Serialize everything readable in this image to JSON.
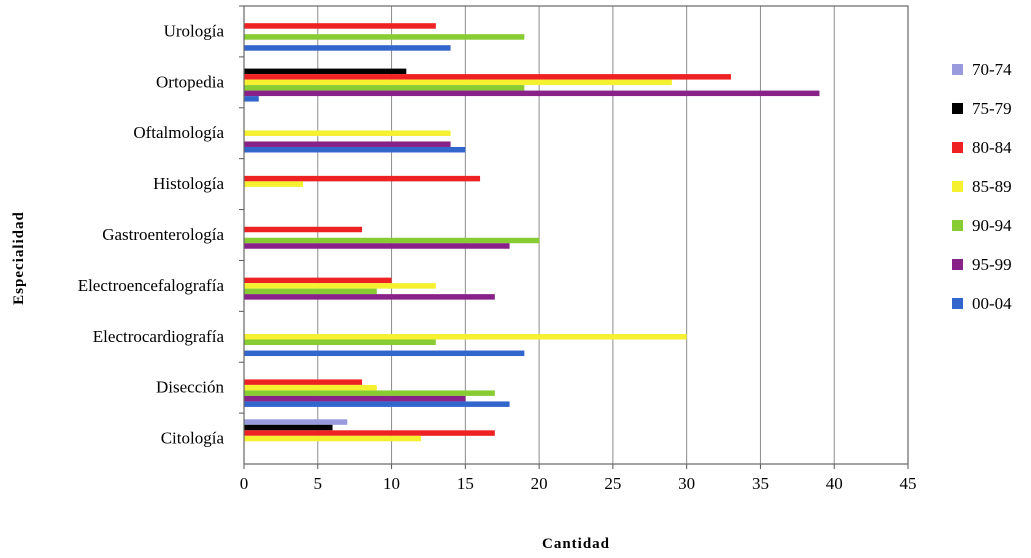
{
  "chart_data": {
    "type": "bar",
    "orientation": "horizontal",
    "title": "",
    "xlabel": "Cantidad",
    "ylabel": "Especialidad",
    "xlim": [
      0,
      45
    ],
    "xticks": [
      "0",
      "5",
      "10",
      "15",
      "20",
      "25",
      "30",
      "35",
      "40",
      "45"
    ],
    "grid": "vertical",
    "legend_position": "right",
    "categories": [
      "Urología",
      "Ortopedia",
      "Oftalmología",
      "Histología",
      "Gastroenterología",
      "Electroencefalografía",
      "Electrocardiografía",
      "Disección",
      "Citología"
    ],
    "series": [
      {
        "name": "70-74",
        "color": "#9999dd",
        "values": [
          0,
          0,
          0,
          0,
          0,
          0,
          0,
          0,
          7
        ]
      },
      {
        "name": "75-79",
        "color": "#000000",
        "values": [
          0,
          11,
          0,
          0,
          0,
          0,
          0,
          0,
          6
        ]
      },
      {
        "name": "80-84",
        "color": "#ee2222",
        "values": [
          13,
          33,
          0,
          16,
          8,
          10,
          0,
          8,
          17
        ]
      },
      {
        "name": "85-89",
        "color": "#f5f030",
        "values": [
          0,
          29,
          14,
          4,
          0,
          13,
          30,
          9,
          12
        ]
      },
      {
        "name": "90-94",
        "color": "#88cc33",
        "values": [
          19,
          19,
          0,
          0,
          20,
          9,
          13,
          17,
          0
        ]
      },
      {
        "name": "95-99",
        "color": "#882288",
        "values": [
          0,
          39,
          14,
          0,
          18,
          17,
          0,
          15,
          0
        ]
      },
      {
        "name": "00-04",
        "color": "#3366cc",
        "values": [
          14,
          1,
          15,
          0,
          0,
          0,
          19,
          18,
          0
        ]
      }
    ]
  }
}
